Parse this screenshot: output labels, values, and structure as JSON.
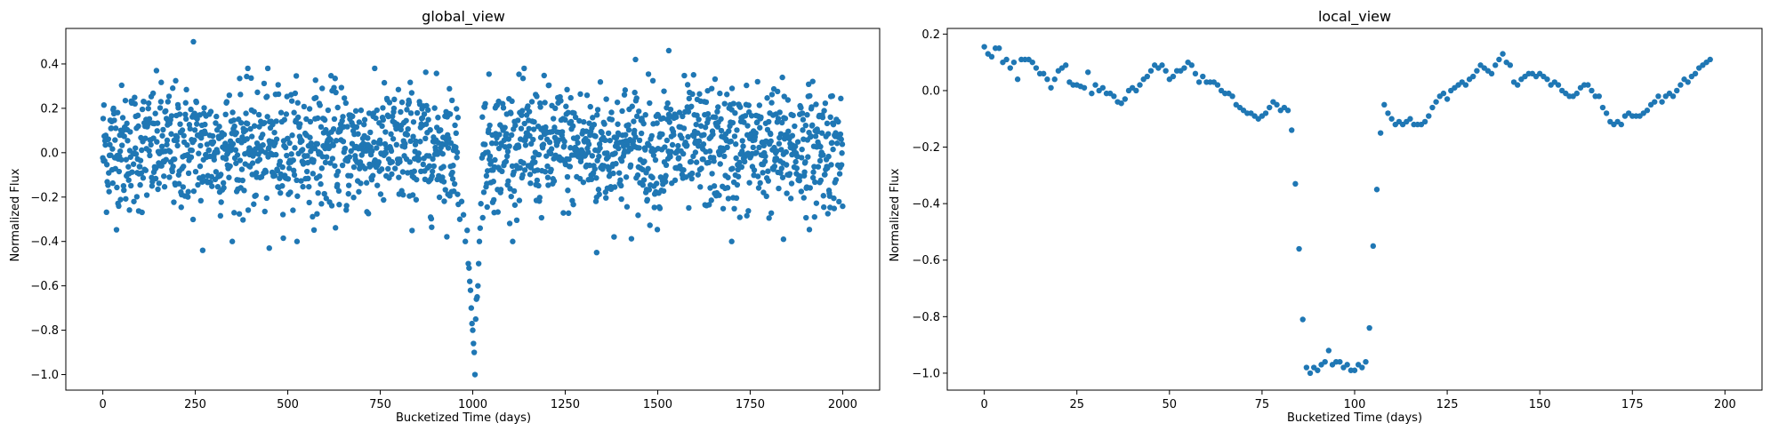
{
  "colors": {
    "marker": "#1f77b4",
    "axes": "#000000",
    "background": "#ffffff"
  },
  "chart_data": [
    {
      "type": "scatter",
      "title": "global_view",
      "xlabel": "Bucketized Time (days)",
      "ylabel": "Normalized Flux",
      "xlim": [
        -100,
        2100
      ],
      "ylim": [
        -1.07,
        0.56
      ],
      "xticks": [
        0,
        250,
        500,
        750,
        1000,
        1250,
        1500,
        1750,
        2000
      ],
      "xtick_labels": [
        "0",
        "250",
        "500",
        "750",
        "1000",
        "1250",
        "1500",
        "1750",
        "2000"
      ],
      "yticks": [
        -1.0,
        -0.8,
        -0.6,
        -0.4,
        -0.2,
        0.0,
        0.2,
        0.4
      ],
      "ytick_labels": [
        "−1.0",
        "−0.8",
        "−0.6",
        "−0.4",
        "−0.2",
        "0.0",
        "0.2",
        "0.4"
      ],
      "grid": false,
      "legend": "none",
      "description_of_points": "about 2000 evenly spaced points, flux scatter roughly within -0.4..0.4 around 0; transit dip near x=990-1010 reaching -1.0",
      "transit_points": [
        {
          "x": 965,
          "y": -0.3
        },
        {
          "x": 970,
          "y": -0.22
        },
        {
          "x": 975,
          "y": -0.28
        },
        {
          "x": 980,
          "y": -0.4
        },
        {
          "x": 985,
          "y": -0.35
        },
        {
          "x": 988,
          "y": -0.5
        },
        {
          "x": 990,
          "y": -0.52
        },
        {
          "x": 992,
          "y": -0.58
        },
        {
          "x": 994,
          "y": -0.62
        },
        {
          "x": 996,
          "y": -0.7
        },
        {
          "x": 998,
          "y": -0.77
        },
        {
          "x": 1000,
          "y": -0.8
        },
        {
          "x": 1002,
          "y": -0.86
        },
        {
          "x": 1004,
          "y": -0.9
        },
        {
          "x": 1006,
          "y": -1.0
        },
        {
          "x": 1008,
          "y": -0.75
        },
        {
          "x": 1010,
          "y": -0.66
        },
        {
          "x": 1012,
          "y": -0.65
        },
        {
          "x": 1014,
          "y": -0.6
        },
        {
          "x": 1016,
          "y": -0.5
        },
        {
          "x": 1018,
          "y": -0.4
        },
        {
          "x": 1020,
          "y": -0.34
        },
        {
          "x": 1022,
          "y": -0.23
        }
      ],
      "outliers": [
        {
          "x": 245,
          "y": 0.5
        },
        {
          "x": 1530,
          "y": 0.46
        },
        {
          "x": 1440,
          "y": 0.42
        },
        {
          "x": 270,
          "y": -0.44
        },
        {
          "x": 450,
          "y": -0.43
        },
        {
          "x": 1335,
          "y": -0.45
        },
        {
          "x": 1700,
          "y": -0.4
        },
        {
          "x": 1840,
          "y": -0.39
        }
      ]
    },
    {
      "type": "scatter",
      "title": "local_view",
      "xlabel": "Bucketized Time (days)",
      "ylabel": "Normalized Flux",
      "xlim": [
        -10,
        210
      ],
      "ylim": [
        -1.06,
        0.22
      ],
      "xticks": [
        0,
        25,
        50,
        75,
        100,
        125,
        150,
        175,
        200
      ],
      "xtick_labels": [
        "0",
        "25",
        "50",
        "75",
        "100",
        "125",
        "150",
        "175",
        "200"
      ],
      "yticks": [
        -1.0,
        -0.8,
        -0.6,
        -0.4,
        -0.2,
        0.0,
        0.2
      ],
      "ytick_labels": [
        "−1.0",
        "−0.8",
        "−0.6",
        "−0.4",
        "−0.2",
        "0.0",
        "0.2"
      ],
      "grid": false,
      "legend": "none",
      "points": [
        {
          "x": 0,
          "y": 0.155
        },
        {
          "x": 1,
          "y": 0.13
        },
        {
          "x": 2,
          "y": 0.12
        },
        {
          "x": 3,
          "y": 0.15
        },
        {
          "x": 4,
          "y": 0.15
        },
        {
          "x": 5,
          "y": 0.1
        },
        {
          "x": 6,
          "y": 0.11
        },
        {
          "x": 7,
          "y": 0.08
        },
        {
          "x": 8,
          "y": 0.1
        },
        {
          "x": 9,
          "y": 0.04
        },
        {
          "x": 10,
          "y": 0.11
        },
        {
          "x": 11,
          "y": 0.11
        },
        {
          "x": 12,
          "y": 0.11
        },
        {
          "x": 13,
          "y": 0.1
        },
        {
          "x": 14,
          "y": 0.08
        },
        {
          "x": 15,
          "y": 0.06
        },
        {
          "x": 16,
          "y": 0.06
        },
        {
          "x": 17,
          "y": 0.04
        },
        {
          "x": 18,
          "y": 0.01
        },
        {
          "x": 19,
          "y": 0.04
        },
        {
          "x": 20,
          "y": 0.07
        },
        {
          "x": 21,
          "y": 0.08
        },
        {
          "x": 22,
          "y": 0.09
        },
        {
          "x": 23,
          "y": 0.03
        },
        {
          "x": 24,
          "y": 0.02
        },
        {
          "x": 25,
          "y": 0.02
        },
        {
          "x": 26,
          "y": 0.015
        },
        {
          "x": 27,
          "y": 0.01
        },
        {
          "x": 28,
          "y": 0.065
        },
        {
          "x": 29,
          "y": -0.01
        },
        {
          "x": 30,
          "y": 0.02
        },
        {
          "x": 31,
          "y": 0.0
        },
        {
          "x": 32,
          "y": 0.01
        },
        {
          "x": 33,
          "y": -0.01
        },
        {
          "x": 34,
          "y": -0.01
        },
        {
          "x": 35,
          "y": -0.02
        },
        {
          "x": 36,
          "y": -0.04
        },
        {
          "x": 37,
          "y": -0.045
        },
        {
          "x": 38,
          "y": -0.03
        },
        {
          "x": 39,
          "y": 0.0
        },
        {
          "x": 40,
          "y": 0.01
        },
        {
          "x": 41,
          "y": 0.0
        },
        {
          "x": 42,
          "y": 0.02
        },
        {
          "x": 43,
          "y": 0.04
        },
        {
          "x": 44,
          "y": 0.05
        },
        {
          "x": 45,
          "y": 0.07
        },
        {
          "x": 46,
          "y": 0.09
        },
        {
          "x": 47,
          "y": 0.08
        },
        {
          "x": 48,
          "y": 0.09
        },
        {
          "x": 49,
          "y": 0.07
        },
        {
          "x": 50,
          "y": 0.04
        },
        {
          "x": 51,
          "y": 0.05
        },
        {
          "x": 52,
          "y": 0.07
        },
        {
          "x": 53,
          "y": 0.07
        },
        {
          "x": 54,
          "y": 0.08
        },
        {
          "x": 55,
          "y": 0.1
        },
        {
          "x": 56,
          "y": 0.09
        },
        {
          "x": 57,
          "y": 0.06
        },
        {
          "x": 58,
          "y": 0.03
        },
        {
          "x": 59,
          "y": 0.05
        },
        {
          "x": 60,
          "y": 0.03
        },
        {
          "x": 61,
          "y": 0.03
        },
        {
          "x": 62,
          "y": 0.03
        },
        {
          "x": 63,
          "y": 0.02
        },
        {
          "x": 64,
          "y": 0.0
        },
        {
          "x": 65,
          "y": -0.01
        },
        {
          "x": 66,
          "y": -0.01
        },
        {
          "x": 67,
          "y": -0.02
        },
        {
          "x": 68,
          "y": -0.05
        },
        {
          "x": 69,
          "y": -0.06
        },
        {
          "x": 70,
          "y": -0.07
        },
        {
          "x": 71,
          "y": -0.08
        },
        {
          "x": 72,
          "y": -0.08
        },
        {
          "x": 73,
          "y": -0.09
        },
        {
          "x": 74,
          "y": -0.1
        },
        {
          "x": 75,
          "y": -0.09
        },
        {
          "x": 76,
          "y": -0.08
        },
        {
          "x": 77,
          "y": -0.06
        },
        {
          "x": 78,
          "y": -0.04
        },
        {
          "x": 79,
          "y": -0.05
        },
        {
          "x": 80,
          "y": -0.07
        },
        {
          "x": 81,
          "y": -0.06
        },
        {
          "x": 82,
          "y": -0.07
        },
        {
          "x": 83,
          "y": -0.14
        },
        {
          "x": 84,
          "y": -0.33
        },
        {
          "x": 85,
          "y": -0.56
        },
        {
          "x": 86,
          "y": -0.81
        },
        {
          "x": 87,
          "y": -0.98
        },
        {
          "x": 88,
          "y": -1.0
        },
        {
          "x": 89,
          "y": -0.98
        },
        {
          "x": 90,
          "y": -0.99
        },
        {
          "x": 91,
          "y": -0.97
        },
        {
          "x": 92,
          "y": -0.96
        },
        {
          "x": 93,
          "y": -0.92
        },
        {
          "x": 94,
          "y": -0.97
        },
        {
          "x": 95,
          "y": -0.96
        },
        {
          "x": 96,
          "y": -0.96
        },
        {
          "x": 97,
          "y": -0.98
        },
        {
          "x": 98,
          "y": -0.97
        },
        {
          "x": 99,
          "y": -0.99
        },
        {
          "x": 100,
          "y": -0.99
        },
        {
          "x": 101,
          "y": -0.97
        },
        {
          "x": 102,
          "y": -0.98
        },
        {
          "x": 103,
          "y": -0.96
        },
        {
          "x": 104,
          "y": -0.84
        },
        {
          "x": 105,
          "y": -0.55
        },
        {
          "x": 106,
          "y": -0.35
        },
        {
          "x": 107,
          "y": -0.15
        },
        {
          "x": 108,
          "y": -0.05
        },
        {
          "x": 109,
          "y": -0.08
        },
        {
          "x": 110,
          "y": -0.1
        },
        {
          "x": 111,
          "y": -0.12
        },
        {
          "x": 112,
          "y": -0.11
        },
        {
          "x": 113,
          "y": -0.12
        },
        {
          "x": 114,
          "y": -0.11
        },
        {
          "x": 115,
          "y": -0.1
        },
        {
          "x": 116,
          "y": -0.12
        },
        {
          "x": 117,
          "y": -0.12
        },
        {
          "x": 118,
          "y": -0.12
        },
        {
          "x": 119,
          "y": -0.11
        },
        {
          "x": 120,
          "y": -0.09
        },
        {
          "x": 121,
          "y": -0.06
        },
        {
          "x": 122,
          "y": -0.04
        },
        {
          "x": 123,
          "y": -0.02
        },
        {
          "x": 124,
          "y": -0.01
        },
        {
          "x": 125,
          "y": -0.03
        },
        {
          "x": 126,
          "y": 0.0
        },
        {
          "x": 127,
          "y": 0.01
        },
        {
          "x": 128,
          "y": 0.02
        },
        {
          "x": 129,
          "y": 0.03
        },
        {
          "x": 130,
          "y": 0.02
        },
        {
          "x": 131,
          "y": 0.04
        },
        {
          "x": 132,
          "y": 0.05
        },
        {
          "x": 133,
          "y": 0.07
        },
        {
          "x": 134,
          "y": 0.09
        },
        {
          "x": 135,
          "y": 0.08
        },
        {
          "x": 136,
          "y": 0.07
        },
        {
          "x": 137,
          "y": 0.06
        },
        {
          "x": 138,
          "y": 0.09
        },
        {
          "x": 139,
          "y": 0.11
        },
        {
          "x": 140,
          "y": 0.13
        },
        {
          "x": 141,
          "y": 0.1
        },
        {
          "x": 142,
          "y": 0.09
        },
        {
          "x": 143,
          "y": 0.03
        },
        {
          "x": 144,
          "y": 0.02
        },
        {
          "x": 145,
          "y": 0.04
        },
        {
          "x": 146,
          "y": 0.05
        },
        {
          "x": 147,
          "y": 0.06
        },
        {
          "x": 148,
          "y": 0.06
        },
        {
          "x": 149,
          "y": 0.05
        },
        {
          "x": 150,
          "y": 0.06
        },
        {
          "x": 151,
          "y": 0.05
        },
        {
          "x": 152,
          "y": 0.04
        },
        {
          "x": 153,
          "y": 0.02
        },
        {
          "x": 154,
          "y": 0.03
        },
        {
          "x": 155,
          "y": 0.02
        },
        {
          "x": 156,
          "y": 0.0
        },
        {
          "x": 157,
          "y": -0.01
        },
        {
          "x": 158,
          "y": -0.02
        },
        {
          "x": 159,
          "y": -0.02
        },
        {
          "x": 160,
          "y": -0.01
        },
        {
          "x": 161,
          "y": 0.01
        },
        {
          "x": 162,
          "y": 0.02
        },
        {
          "x": 163,
          "y": 0.02
        },
        {
          "x": 164,
          "y": 0.0
        },
        {
          "x": 165,
          "y": -0.02
        },
        {
          "x": 166,
          "y": -0.02
        },
        {
          "x": 167,
          "y": -0.06
        },
        {
          "x": 168,
          "y": -0.08
        },
        {
          "x": 169,
          "y": -0.11
        },
        {
          "x": 170,
          "y": -0.12
        },
        {
          "x": 171,
          "y": -0.11
        },
        {
          "x": 172,
          "y": -0.12
        },
        {
          "x": 173,
          "y": -0.09
        },
        {
          "x": 174,
          "y": -0.08
        },
        {
          "x": 175,
          "y": -0.09
        },
        {
          "x": 176,
          "y": -0.09
        },
        {
          "x": 177,
          "y": -0.09
        },
        {
          "x": 178,
          "y": -0.08
        },
        {
          "x": 179,
          "y": -0.07
        },
        {
          "x": 180,
          "y": -0.05
        },
        {
          "x": 181,
          "y": -0.04
        },
        {
          "x": 182,
          "y": -0.02
        },
        {
          "x": 183,
          "y": -0.04
        },
        {
          "x": 184,
          "y": -0.02
        },
        {
          "x": 185,
          "y": -0.01
        },
        {
          "x": 186,
          "y": -0.02
        },
        {
          "x": 187,
          "y": 0.0
        },
        {
          "x": 188,
          "y": 0.02
        },
        {
          "x": 189,
          "y": 0.04
        },
        {
          "x": 190,
          "y": 0.03
        },
        {
          "x": 191,
          "y": 0.05
        },
        {
          "x": 192,
          "y": 0.06
        },
        {
          "x": 193,
          "y": 0.08
        },
        {
          "x": 194,
          "y": 0.09
        },
        {
          "x": 195,
          "y": 0.1
        },
        {
          "x": 196,
          "y": 0.11
        }
      ]
    }
  ]
}
